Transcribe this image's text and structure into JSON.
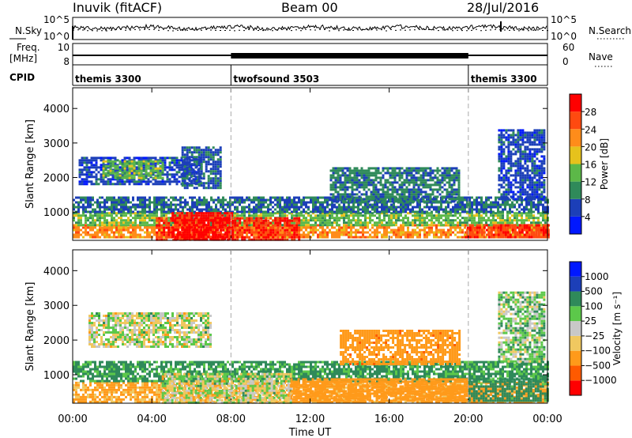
{
  "header": {
    "station": "Inuvik (fitACF)",
    "beam": "Beam 00",
    "date": "28/Jul/2016"
  },
  "top_panels": {
    "nsky_label": "N.Sky",
    "nsky_ticks": [
      "10^5",
      "10^0"
    ],
    "nsearch_label": "N.Search",
    "nsearch_ticks": [
      "10^5",
      "10^0"
    ],
    "freq_label_1": "Freq.",
    "freq_label_2": "[MHz]",
    "freq_ticks": [
      "10",
      "8"
    ],
    "nave_label": "Nave",
    "nave_ticks": [
      "60",
      "0"
    ],
    "cpid_label": "CPID",
    "cpid_segments": [
      {
        "label": "themis 3300",
        "start_hr": 0,
        "end_hr": 8
      },
      {
        "label": "twofsound 3503",
        "start_hr": 8,
        "end_hr": 20
      },
      {
        "label": "themis 3300",
        "start_hr": 20,
        "end_hr": 24
      }
    ]
  },
  "colors": {
    "power_scale": [
      "#0018ff",
      "#1c3fb8",
      "#2f8a5a",
      "#5cb848",
      "#e6c21c",
      "#ff8c1a",
      "#ff4a10",
      "#ff0000"
    ],
    "velocity_scale": [
      "#ff0000",
      "#ff5a00",
      "#ff9a1a",
      "#f0c860",
      "#c8c8c8",
      "#5cc84a",
      "#2f8a5a",
      "#1c3fb8",
      "#0018ff"
    ]
  },
  "chart_data": [
    {
      "type": "heatmap",
      "name": "power",
      "xlabel": "",
      "ylabel": "Slant Range [km]",
      "xlim": [
        0,
        24
      ],
      "ylim": [
        180,
        4600
      ],
      "yticks": [
        1000,
        2000,
        3000,
        4000
      ],
      "colorbar_label": "Power [dB]",
      "colorbar_range": [
        0,
        32
      ],
      "colorbar_ticks": [
        4,
        8,
        12,
        16,
        20,
        24,
        28
      ],
      "bands": [
        {
          "t0": 0.0,
          "t1": 24.0,
          "r0": 300,
          "r1": 650,
          "value": 22
        },
        {
          "t0": 0.0,
          "t1": 24.0,
          "r0": 650,
          "r1": 1000,
          "value": 14
        },
        {
          "t0": 0.0,
          "t1": 24.0,
          "r0": 1000,
          "r1": 1450,
          "value": 8
        },
        {
          "t0": 4.2,
          "t1": 11.5,
          "r0": 200,
          "r1": 850,
          "value": 28
        },
        {
          "t0": 5.0,
          "t1": 8.0,
          "r0": 200,
          "r1": 1000,
          "value": 30
        },
        {
          "t0": 19.8,
          "t1": 24.0,
          "r0": 250,
          "r1": 650,
          "value": 27
        },
        {
          "t0": 0.3,
          "t1": 6.5,
          "r0": 1800,
          "r1": 2600,
          "value": 6
        },
        {
          "t0": 1.5,
          "t1": 4.5,
          "r0": 2000,
          "r1": 2500,
          "value": 14
        },
        {
          "t0": 5.5,
          "t1": 7.5,
          "r0": 1700,
          "r1": 2900,
          "value": 7
        },
        {
          "t0": 13.0,
          "t1": 19.5,
          "r0": 1300,
          "r1": 2300,
          "value": 9
        },
        {
          "t0": 21.5,
          "t1": 23.8,
          "r0": 1400,
          "r1": 3400,
          "value": 6
        }
      ]
    },
    {
      "type": "heatmap",
      "name": "velocity",
      "xlabel": "Time UT",
      "ylabel": "Slant Range [km]",
      "xlim": [
        0,
        24
      ],
      "ylim": [
        180,
        4600
      ],
      "xticks": [
        "00:00",
        "04:00",
        "08:00",
        "12:00",
        "16:00",
        "20:00",
        "00:00"
      ],
      "yticks": [
        1000,
        2000,
        3000,
        4000
      ],
      "colorbar_label": "Velocity [m s⁻¹]",
      "colorbar_ticks": [
        "1000",
        "500",
        "100",
        "25",
        "−25",
        "−100",
        "−500",
        "−1000"
      ],
      "bands": [
        {
          "t0": 0.0,
          "t1": 24.0,
          "r0": 250,
          "r1": 800,
          "value": -150
        },
        {
          "t0": 0.0,
          "t1": 24.0,
          "r0": 800,
          "r1": 1400,
          "value": 150
        },
        {
          "t0": 4.5,
          "t1": 11.0,
          "r0": 200,
          "r1": 1050,
          "value": 0
        },
        {
          "t0": 11.0,
          "t1": 20.0,
          "r0": 250,
          "r1": 900,
          "value": -300
        },
        {
          "t0": 20.0,
          "t1": 24.0,
          "r0": 250,
          "r1": 900,
          "value": 200
        },
        {
          "t0": 0.8,
          "t1": 7.0,
          "r0": 1800,
          "r1": 2800,
          "value": 0
        },
        {
          "t0": 13.5,
          "t1": 19.5,
          "r0": 1300,
          "r1": 2300,
          "value": -400
        },
        {
          "t0": 21.5,
          "t1": 23.8,
          "r0": 1400,
          "r1": 3400,
          "value": 50
        }
      ]
    }
  ]
}
